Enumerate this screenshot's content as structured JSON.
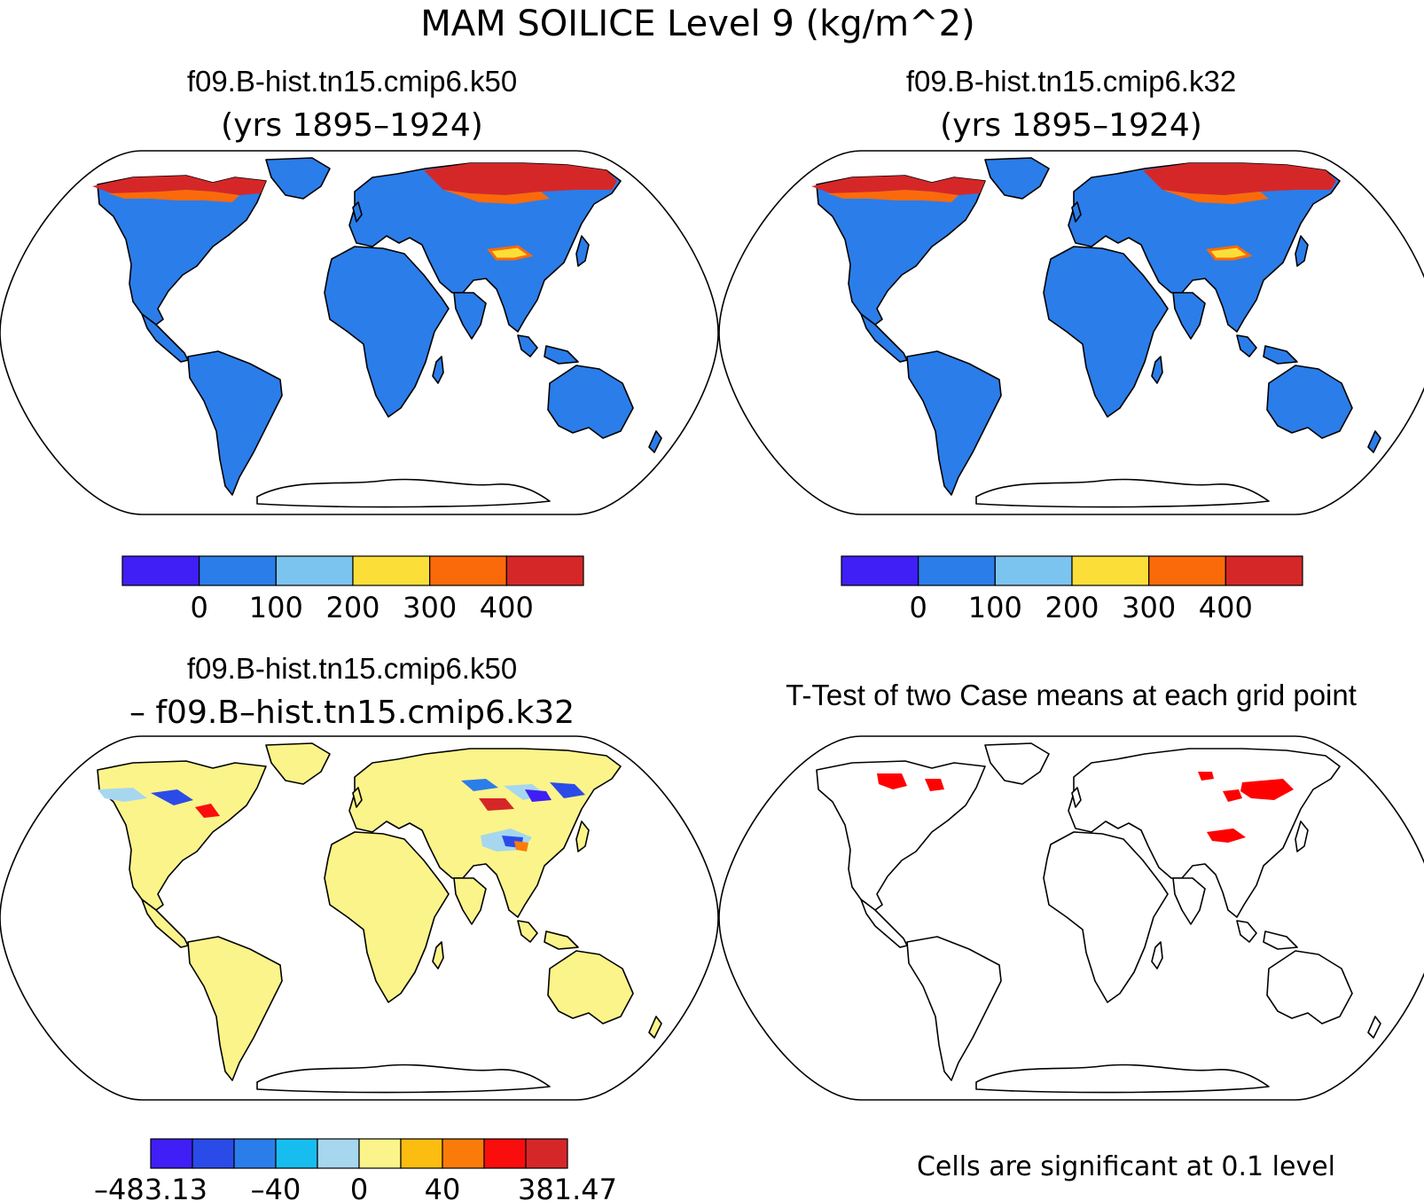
{
  "title": "MAM SOILICE Level 9 (kg/m^2)",
  "colors": {
    "land_mean": "#2b7de9",
    "land_diff": "#fbf48a",
    "permafrost_high": "#d62728",
    "permafrost_mid": "#fb6a0a",
    "significant": "#ff0000"
  },
  "panels": [
    {
      "id": "case1",
      "title_line1": "f09.B-hist.tn15.cmip6.k50",
      "title_line2": "(yrs 1895–1924)",
      "colorbar": {
        "colors": [
          "#3f1ff5",
          "#2b7de9",
          "#7cc4f0",
          "#fbdf38",
          "#fb6a0a",
          "#d62728"
        ],
        "labels": [
          "0",
          "100",
          "200",
          "300",
          "400"
        ]
      }
    },
    {
      "id": "case2",
      "title_line1": "f09.B-hist.tn15.cmip6.k32",
      "title_line2": "(yrs 1895–1924)",
      "colorbar": {
        "colors": [
          "#3f1ff5",
          "#2b7de9",
          "#7cc4f0",
          "#fbdf38",
          "#fb6a0a",
          "#d62728"
        ],
        "labels": [
          "0",
          "100",
          "200",
          "300",
          "400"
        ]
      }
    },
    {
      "id": "difference",
      "title_line1": "f09.B-hist.tn15.cmip6.k50",
      "title_line2": "– f09.B–hist.tn15.cmip6.k32",
      "colorbar": {
        "colors": [
          "#3f1ff5",
          "#2b4be8",
          "#2b7de9",
          "#18bdf0",
          "#a6d7ef",
          "#fbf48a",
          "#fbbd10",
          "#fb7b0a",
          "#fa0d0d",
          "#d62728"
        ],
        "labels": [
          "–483.13",
          "–40",
          "0",
          "40",
          "381.47"
        ]
      }
    },
    {
      "id": "ttest",
      "title_line1": "T-Test of two Case means at each grid point",
      "footnote": "Cells are significant at 0.1 level"
    }
  ]
}
